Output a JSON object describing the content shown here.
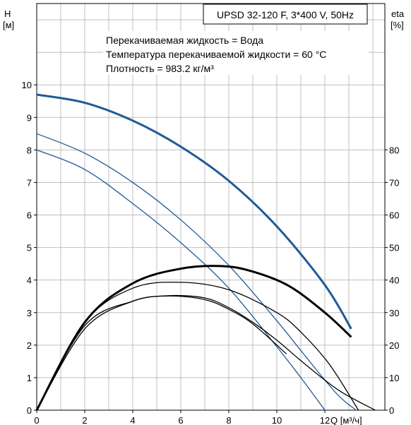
{
  "chart_data": {
    "type": "line",
    "title": "UPSD 32-120 F, 3*400 V, 50Hz",
    "annotations": [
      "Перекачиваемая жидкость = Вода",
      "Температура перекачиваемой жидкости = 60 °C",
      "Плотность = 983.2 кг/м³"
    ],
    "y_left_label": [
      "H",
      "[м]"
    ],
    "y_right_label": [
      "eta",
      "[%]"
    ],
    "x_label": "Q [м³/ч]",
    "xlim": [
      0,
      14.5
    ],
    "ylim_left": [
      0,
      12.5
    ],
    "ylim_right": [
      0,
      125
    ],
    "x_ticks": [
      "0",
      "2",
      "4",
      "6",
      "8",
      "10",
      "12"
    ],
    "y_left_ticks": [
      "0",
      "1",
      "2",
      "3",
      "4",
      "5",
      "6",
      "7",
      "8",
      "9",
      "10"
    ],
    "y_right_ticks": [
      "0",
      "10",
      "20",
      "30",
      "40",
      "50",
      "60",
      "70",
      "80"
    ],
    "grid": true,
    "head_color": "#1f5a96",
    "eta_color": "#000000",
    "series": [
      {
        "kind": "head",
        "axis": "left",
        "emphasis": true,
        "x": [
          0,
          2,
          4,
          6,
          8,
          10,
          12,
          13.1
        ],
        "y": [
          9.7,
          9.45,
          8.9,
          8.1,
          7.05,
          5.65,
          3.85,
          2.5
        ]
      },
      {
        "kind": "head",
        "axis": "left",
        "emphasis": false,
        "x": [
          0,
          2,
          4,
          6,
          8,
          10,
          11.2,
          12.5,
          13.3
        ],
        "y": [
          8.5,
          7.9,
          7.0,
          5.85,
          4.45,
          2.75,
          1.65,
          0.5,
          0
        ]
      },
      {
        "kind": "head",
        "axis": "left",
        "emphasis": false,
        "x": [
          0,
          2,
          4,
          6,
          8,
          10,
          11,
          12
        ],
        "y": [
          8.0,
          7.4,
          6.35,
          5.15,
          3.75,
          1.95,
          1.0,
          0
        ]
      },
      {
        "kind": "eta",
        "axis": "right",
        "emphasis": true,
        "x": [
          0,
          2,
          4,
          6,
          7.7,
          9,
          10.5,
          12,
          13.1
        ],
        "y": [
          0,
          27,
          39,
          43.5,
          44.3,
          42.6,
          38.2,
          30,
          22.5
        ]
      },
      {
        "kind": "eta",
        "axis": "right",
        "emphasis": false,
        "x": [
          0,
          2,
          4,
          6,
          8,
          10,
          11,
          12.2,
          13.4
        ],
        "y": [
          0,
          27,
          37.5,
          39.3,
          37,
          30,
          24,
          14,
          0
        ]
      },
      {
        "kind": "eta",
        "axis": "right",
        "emphasis": false,
        "x": [
          0,
          2,
          4,
          5.5,
          7,
          8,
          9,
          10,
          11.2,
          12.6,
          14.1
        ],
        "y": [
          0,
          26,
          33.5,
          35.2,
          34.5,
          31.5,
          27,
          21.5,
          14,
          6,
          0
        ]
      },
      {
        "kind": "eta",
        "axis": "right",
        "emphasis": false,
        "x": [
          0,
          2,
          4,
          5.5,
          7,
          8,
          9,
          10.4
        ],
        "y": [
          0,
          25,
          33.5,
          35.1,
          34,
          31,
          26.5,
          17.3
        ]
      }
    ]
  }
}
